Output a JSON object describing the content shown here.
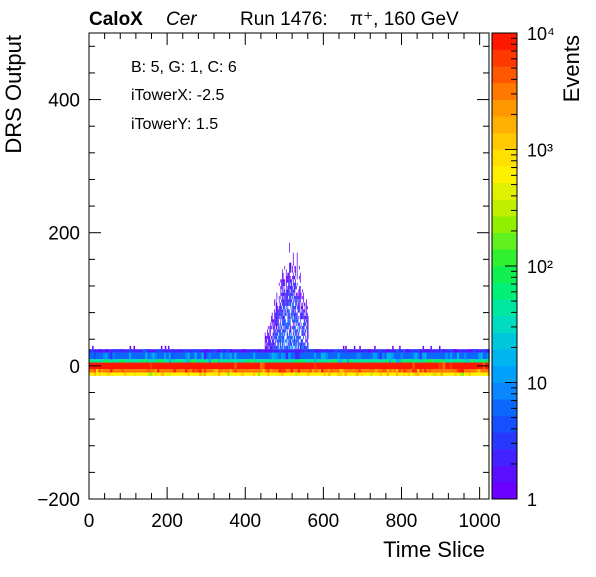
{
  "header": {
    "brand": "CaloX",
    "channel": "Cer",
    "run": "Run 1476:",
    "beam": "π⁺, 160 GeV"
  },
  "annotations": {
    "board": "B: 5, G: 1, C: 6",
    "tower_x": "iTowerX: -2.5",
    "tower_y": "iTowerY: 1.5"
  },
  "chart_data": {
    "type": "heatmap",
    "xlabel": "Time Slice",
    "ylabel": "DRS Output",
    "zlabel": "Events",
    "xlim": [
      0,
      1024
    ],
    "ylim": [
      -200,
      500
    ],
    "zlim": [
      1,
      10000
    ],
    "z_log_scale": true,
    "x_ticks": [
      0,
      200,
      400,
      600,
      800,
      1000
    ],
    "x_tick_labels": [
      "0",
      "200",
      "400",
      "600",
      "800",
      "1000"
    ],
    "y_ticks": [
      -200,
      0,
      200,
      400
    ],
    "y_tick_labels": [
      "−200",
      "0",
      "200",
      "400"
    ],
    "z_ticks": [
      1,
      10,
      100,
      1000,
      10000
    ],
    "z_tick_labels": [
      "1",
      "10",
      "10²",
      "10³",
      "10⁴"
    ],
    "palette": [
      "#6a00ff",
      "#5a10ff",
      "#4222ff",
      "#2838ff",
      "#1450ff",
      "#0a68ff",
      "#0a86ff",
      "#00a0ff",
      "#00b4f0",
      "#00c8dc",
      "#00dcc0",
      "#00e8a0",
      "#00f078",
      "#10f050",
      "#30f030",
      "#60f020",
      "#90f000",
      "#c0f000",
      "#e0f000",
      "#fff000",
      "#ffe000",
      "#ffc800",
      "#ffb000",
      "#ff9800",
      "#ff7800",
      "#ff5800",
      "#ff3800",
      "#ff1800"
    ],
    "bands": [
      {
        "y_min": -5,
        "y_max": 5,
        "events": 10000
      },
      {
        "y_min": -10,
        "y_max": -5,
        "events": 3000
      },
      {
        "y_min": -15,
        "y_max": -10,
        "events": 600
      },
      {
        "y_min": 5,
        "y_max": 10,
        "events": 40
      },
      {
        "y_min": 10,
        "y_max": 20,
        "events": 6
      },
      {
        "y_min": 20,
        "y_max": 25,
        "events": 2
      }
    ],
    "pulse": {
      "t_min": 450,
      "t_max": 560,
      "t_peak": 515,
      "max_output": 190,
      "events": 1
    }
  }
}
